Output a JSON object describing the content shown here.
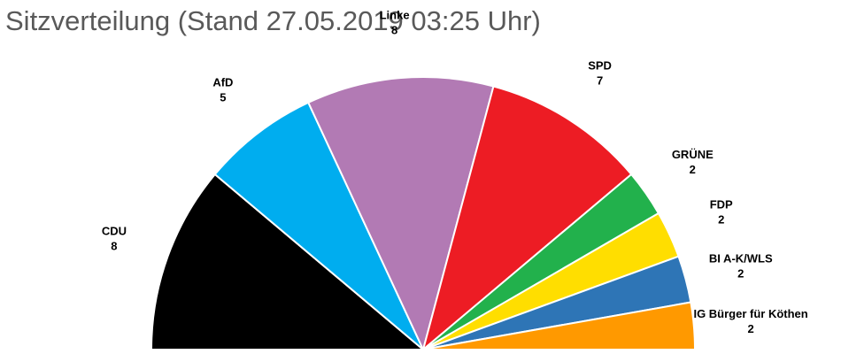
{
  "title": "Sitzverteilung (Stand 27.05.2019 03:25 Uhr)",
  "chart_data": {
    "type": "pie",
    "subtype": "half-donut parliament",
    "title": "Sitzverteilung (Stand 27.05.2019 03:25 Uhr)",
    "categories": [
      "CDU",
      "AfD",
      "Linke",
      "SPD",
      "GRÜNE",
      "FDP",
      "BI A-K/WLS",
      "IG Bürger für Köthen"
    ],
    "values": [
      8,
      5,
      8,
      7,
      2,
      2,
      2,
      2
    ],
    "colors": [
      "#000000",
      "#00adef",
      "#b27ab4",
      "#ed1c24",
      "#22b14c",
      "#ffde00",
      "#2e75b6",
      "#ff9900"
    ],
    "legend": "none",
    "data_labels": "outside"
  }
}
